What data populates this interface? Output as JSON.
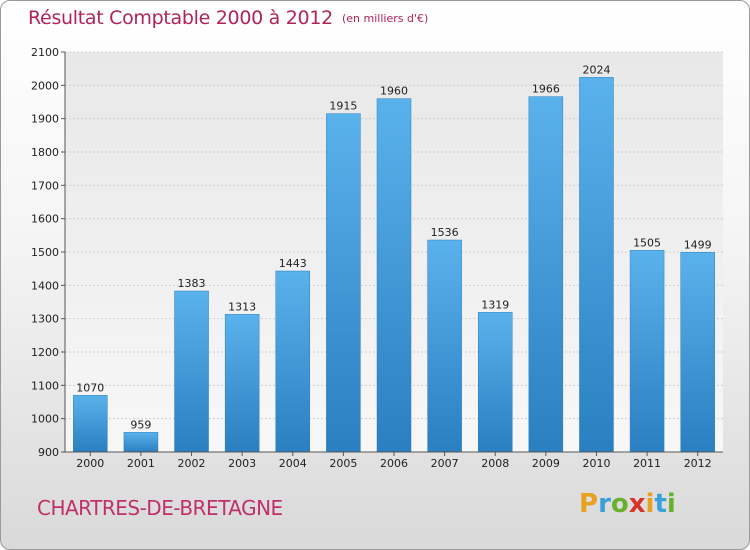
{
  "chart_data": {
    "type": "bar",
    "title": "Résultat Comptable 2000 à 2012",
    "subtitle": "(en milliers d'€)",
    "categories": [
      "2000",
      "2001",
      "2002",
      "2003",
      "2004",
      "2005",
      "2006",
      "2007",
      "2008",
      "2009",
      "2010",
      "2011",
      "2012"
    ],
    "values": [
      1070,
      959,
      1383,
      1313,
      1443,
      1915,
      1960,
      1536,
      1319,
      1966,
      2024,
      1505,
      1499
    ],
    "ylim": [
      900,
      2100
    ],
    "yticks": [
      "900",
      "1000",
      "1100",
      "1200",
      "1300",
      "1400",
      "1500",
      "1600",
      "1700",
      "1800",
      "1900",
      "2000",
      "2100"
    ],
    "xlabel": "",
    "ylabel": "",
    "grid": true,
    "bar_color": "#3a97d8"
  },
  "footer": {
    "commune": "CHARTRES-DE-BRETAGNE",
    "logo_letters": [
      "P",
      "r",
      "o",
      "x",
      "i",
      "t",
      "i"
    ],
    "logo_colors": [
      "#e8a021",
      "#3aa0d8",
      "#6ab02e",
      "#d8342a",
      "#e8a021",
      "#3aa0d8",
      "#6ab02e"
    ]
  }
}
